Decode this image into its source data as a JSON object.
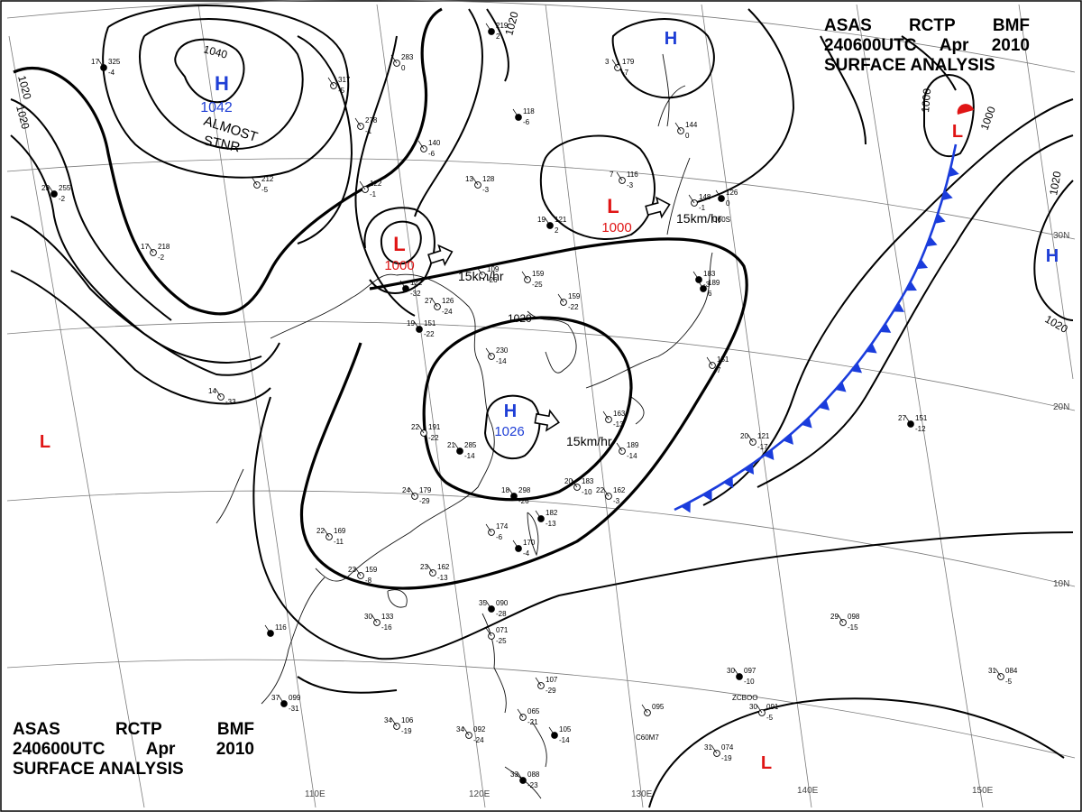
{
  "title": {
    "line1": [
      "ASAS",
      "RCTP",
      "BMF"
    ],
    "line2": [
      "240600UTC",
      "Apr",
      "2010"
    ],
    "line3": "SURFACE ANALYSIS"
  },
  "colors": {
    "high": "#1f3fd6",
    "low": "#e01515",
    "front": "#1a3cdc",
    "isobar": "#000000",
    "grid": "#7a7a7a"
  },
  "pressure_centers": [
    {
      "id": "high-siberia",
      "type": "H",
      "value": "1042",
      "note": [
        "ALMOST",
        "STNR"
      ]
    },
    {
      "id": "high-east-china-sea",
      "type": "H",
      "value": "1026"
    },
    {
      "id": "high-okhotsk",
      "type": "H",
      "value": ""
    },
    {
      "id": "high-pacific",
      "type": "H",
      "value": ""
    },
    {
      "id": "low-korea",
      "type": "L",
      "value": "1000"
    },
    {
      "id": "low-japan-sea",
      "type": "L",
      "value": "1000"
    },
    {
      "id": "low-northeast",
      "type": "L",
      "value": ""
    },
    {
      "id": "low-west",
      "type": "L",
      "value": ""
    },
    {
      "id": "low-south",
      "type": "L",
      "value": ""
    }
  ],
  "isobar_labels": [
    "1040",
    "1020",
    "1020",
    "1020",
    "1020",
    "1000",
    "1000",
    "1020",
    "1020"
  ],
  "motion_labels": [
    "15km/hr",
    "15km/hr",
    "15km/hr"
  ],
  "longitude_labels": [
    "110E",
    "120E",
    "130E",
    "140E",
    "150E"
  ],
  "latitude_labels": [
    "30N",
    "20N",
    "10N"
  ],
  "front": {
    "type": "cold"
  },
  "station_plots": [
    {
      "t": "17",
      "p": "325",
      "d": "-4"
    },
    {
      "t": "",
      "p": "283",
      "d": "0"
    },
    {
      "t": "",
      "p": "317",
      "d": "-5"
    },
    {
      "t": "",
      "p": "219",
      "d": "2"
    },
    {
      "t": "",
      "p": "278",
      "d": "-1"
    },
    {
      "t": "",
      "p": "140",
      "d": "-6"
    },
    {
      "t": "",
      "p": "118",
      "d": "-6"
    },
    {
      "t": "13",
      "p": "128",
      "d": "-3"
    },
    {
      "t": "",
      "p": "212",
      "d": "-5"
    },
    {
      "t": "23",
      "p": "255",
      "d": "-2"
    },
    {
      "t": "",
      "p": "122",
      "d": "-1"
    },
    {
      "t": "17",
      "p": "218",
      "d": "-2"
    },
    {
      "t": "19",
      "p": "121",
      "d": "2"
    },
    {
      "t": "7",
      "p": "116",
      "d": "-3"
    },
    {
      "t": "3",
      "p": "179",
      "d": "-7"
    },
    {
      "t": "",
      "p": "126",
      "d": "0"
    },
    {
      "t": "",
      "p": "148",
      "d": "-1"
    },
    {
      "t": "",
      "p": "144",
      "d": "0"
    },
    {
      "t": "",
      "p": "183",
      "d": "-3"
    },
    {
      "t": "",
      "p": "109",
      "d": "-26"
    },
    {
      "t": "",
      "p": "159",
      "d": "-25"
    },
    {
      "t": "",
      "p": "122",
      "d": "-32"
    },
    {
      "t": "27",
      "p": "126",
      "d": "-24"
    },
    {
      "t": "",
      "p": "159",
      "d": "-22"
    },
    {
      "t": "19",
      "p": "151",
      "d": "-22"
    },
    {
      "t": "",
      "p": "230",
      "d": "-14"
    },
    {
      "t": "14",
      "p": "",
      "d": "-33"
    },
    {
      "t": "",
      "p": "189",
      "d": "6"
    },
    {
      "t": "",
      "p": "151",
      "d": "7"
    },
    {
      "t": "22",
      "p": "191",
      "d": "-22"
    },
    {
      "t": "21",
      "p": "285",
      "d": "-14"
    },
    {
      "t": "",
      "p": "163",
      "d": "-13"
    },
    {
      "t": "",
      "p": "189",
      "d": "-14"
    },
    {
      "t": "27",
      "p": "151",
      "d": "-12"
    },
    {
      "t": "20",
      "p": "121",
      "d": "-17"
    },
    {
      "t": "24",
      "p": "179",
      "d": "-29"
    },
    {
      "t": "18",
      "p": "298",
      "d": "-26"
    },
    {
      "t": "20",
      "p": "183",
      "d": "-10"
    },
    {
      "t": "22",
      "p": "162",
      "d": "-3"
    },
    {
      "t": "",
      "p": "182",
      "d": "-13"
    },
    {
      "t": "22",
      "p": "169",
      "d": "-11"
    },
    {
      "t": "",
      "p": "174",
      "d": "-6"
    },
    {
      "t": "",
      "p": "170",
      "d": "-4"
    },
    {
      "t": "23",
      "p": "159",
      "d": "-8"
    },
    {
      "t": "23",
      "p": "162",
      "d": "-13"
    },
    {
      "t": "35",
      "p": "090",
      "d": "-28"
    },
    {
      "t": "",
      "p": "071",
      "d": "-25"
    },
    {
      "t": "30",
      "p": "133",
      "d": "-16"
    },
    {
      "t": "",
      "p": "116",
      "d": ""
    },
    {
      "t": "",
      "p": "107",
      "d": "-29"
    },
    {
      "t": "29",
      "p": "098",
      "d": "-15"
    },
    {
      "t": "30",
      "p": "097",
      "d": "-10"
    },
    {
      "t": "31",
      "p": "084",
      "d": "-5"
    },
    {
      "t": "",
      "p": "095",
      "d": ""
    },
    {
      "t": "37",
      "p": "099",
      "d": "-31"
    },
    {
      "t": "34",
      "p": "106",
      "d": "-19"
    },
    {
      "t": "34",
      "p": "092",
      "d": "-24"
    },
    {
      "t": "",
      "p": "105",
      "d": "-14"
    },
    {
      "t": "30",
      "p": "091",
      "d": "-5"
    },
    {
      "t": "31",
      "p": "074",
      "d": "-19"
    },
    {
      "t": "33",
      "p": "088",
      "d": "-23"
    },
    {
      "t": "",
      "p": "065",
      "d": "-21"
    }
  ],
  "station_codes": [
    "ZCBOO",
    "C60M7",
    "U60S"
  ]
}
